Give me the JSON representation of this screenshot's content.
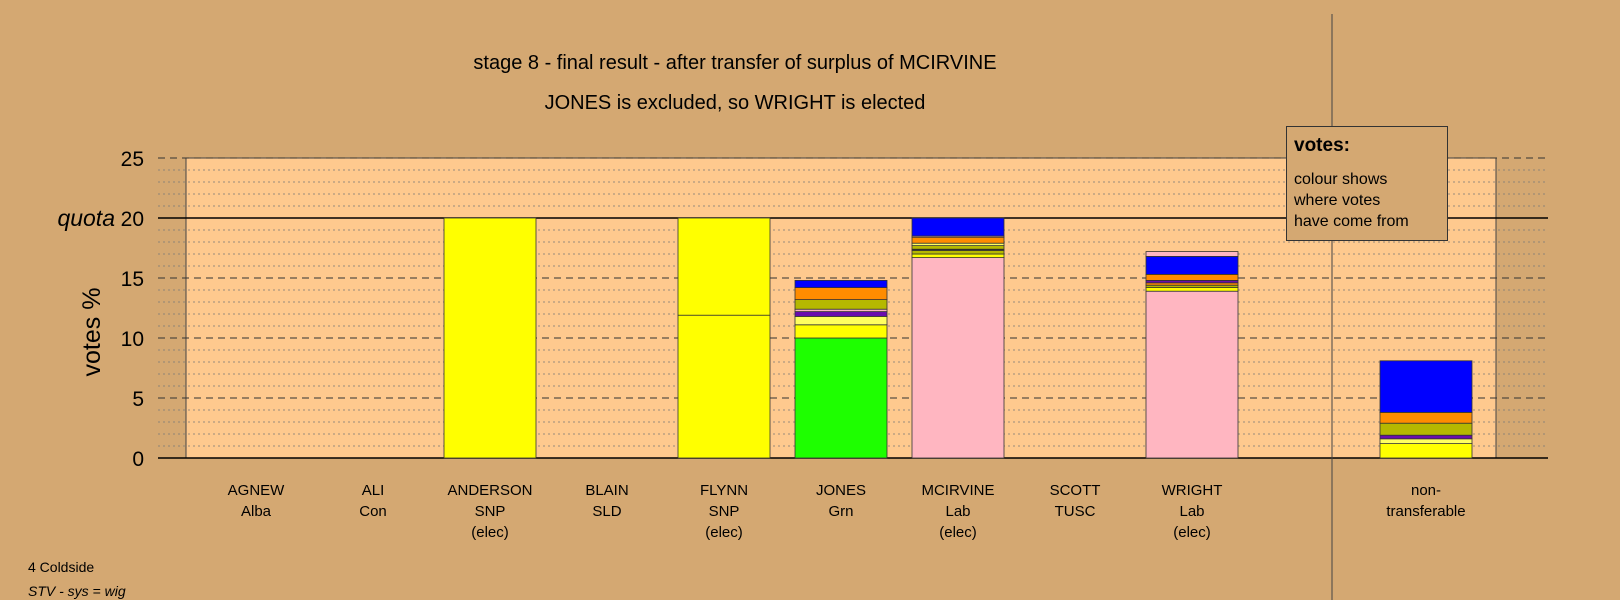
{
  "chart_data": {
    "type": "bar",
    "title": "stage 8 - final result - after transfer of surplus of MCIRVINE",
    "subtitle": "JONES is excluded, so WRIGHT is elected",
    "ylabel": "votes %",
    "quota_label": "quota",
    "quota": 20,
    "ylim": [
      0,
      25
    ],
    "yticks": [
      0,
      5,
      10,
      15,
      20,
      25
    ],
    "grid": true,
    "candidates": [
      {
        "name": "AGNEW",
        "party": "Alba",
        "status": "",
        "segments": []
      },
      {
        "name": "ALI",
        "party": "Con",
        "status": "",
        "segments": []
      },
      {
        "name": "ANDERSON",
        "party": "SNP",
        "status": "(elec)",
        "segments": [
          {
            "color": "#ffff00",
            "value": 20
          }
        ]
      },
      {
        "name": "BLAIN",
        "party": "SLD",
        "status": "",
        "segments": []
      },
      {
        "name": "FLYNN",
        "party": "SNP",
        "status": "(elec)",
        "segments": [
          {
            "color": "#ffff00",
            "value": 11.9
          },
          {
            "color": "#ffff00",
            "value": 8.1
          }
        ]
      },
      {
        "name": "JONES",
        "party": "Grn",
        "status": "",
        "segments": [
          {
            "color": "#1eff00",
            "value": 10.0
          },
          {
            "color": "#ffff00",
            "value": 1.1
          },
          {
            "color": "#ffff60",
            "value": 0.7
          },
          {
            "color": "#6a0dad",
            "value": 0.4
          },
          {
            "color": "#ffb6c1",
            "value": 0.2
          },
          {
            "color": "#b5b800",
            "value": 0.8
          },
          {
            "color": "#ff8c00",
            "value": 1.0
          },
          {
            "color": "#0000ff",
            "value": 0.6
          }
        ]
      },
      {
        "name": "MCIRVINE",
        "party": "Lab",
        "status": "(elec)",
        "segments": [
          {
            "color": "#ffb6c1",
            "value": 16.7
          },
          {
            "color": "#ffff00",
            "value": 0.3
          },
          {
            "color": "#b5b800",
            "value": 0.3
          },
          {
            "color": "#222222",
            "value": 0.1
          },
          {
            "color": "#b5b800",
            "value": 0.3
          },
          {
            "color": "#ffff60",
            "value": 0.2
          },
          {
            "color": "#ff8c00",
            "value": 0.5
          },
          {
            "color": "#ffb6c1",
            "value": 0.1
          },
          {
            "color": "#0000ff",
            "value": 1.5
          }
        ]
      },
      {
        "name": "SCOTT",
        "party": "TUSC",
        "status": "",
        "segments": []
      },
      {
        "name": "WRIGHT",
        "party": "Lab",
        "status": "(elec)",
        "segments": [
          {
            "color": "#ffb6c1",
            "value": 13.9
          },
          {
            "color": "#ffff00",
            "value": 0.3
          },
          {
            "color": "#b5b800",
            "value": 0.2
          },
          {
            "color": "#ff8c00",
            "value": 0.2
          },
          {
            "color": "#6a0dad",
            "value": 0.2
          },
          {
            "color": "#ff8c00",
            "value": 0.5
          },
          {
            "color": "#0000ff",
            "value": 1.5
          },
          {
            "color": "#ffb6c1",
            "value": 0.4
          }
        ]
      },
      {
        "name": "non-",
        "party": "transferable",
        "status": "",
        "segments": [
          {
            "color": "#ffff00",
            "value": 1.2
          },
          {
            "color": "#ffff60",
            "value": 0.4
          },
          {
            "color": "#6a0dad",
            "value": 0.3
          },
          {
            "color": "#b5b800",
            "value": 1.0
          },
          {
            "color": "#ff8c00",
            "value": 0.9
          },
          {
            "color": "#0000ff",
            "value": 4.3
          }
        ]
      }
    ]
  },
  "legend": {
    "title": "votes:",
    "lines": [
      "colour shows",
      "where votes",
      "have come from"
    ]
  },
  "footer": {
    "ward": "4 Coldside",
    "system": "STV - sys = wig"
  }
}
